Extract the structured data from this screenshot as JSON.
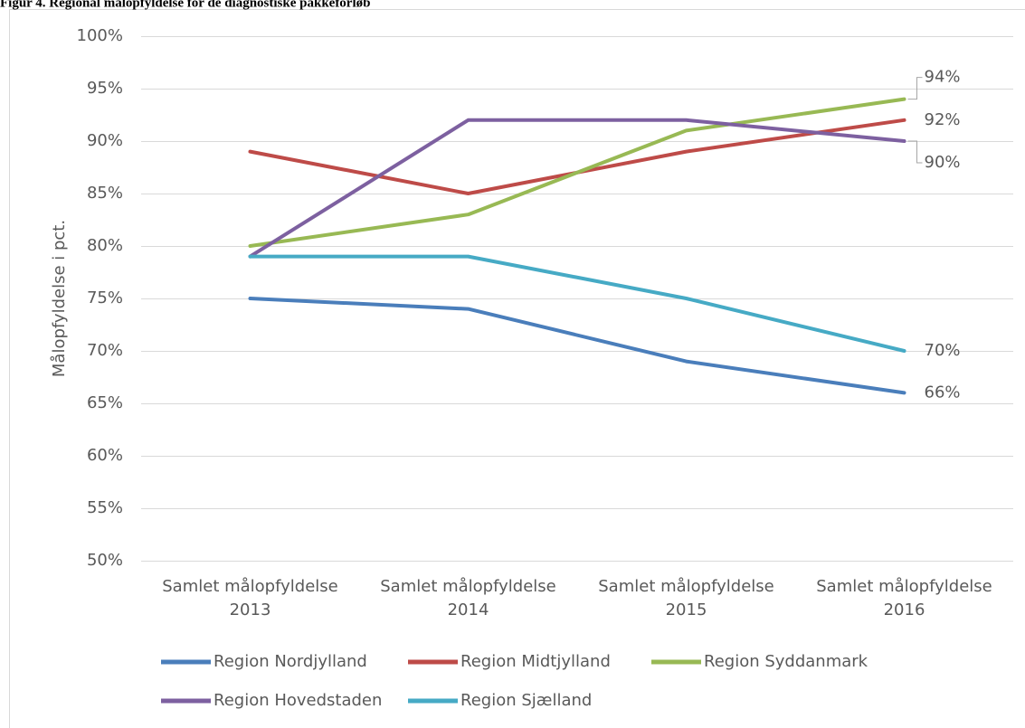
{
  "chart_data": {
    "type": "line",
    "title": "Figur 4. Regional målopfyldelse for de diagnostiske pakkeforløb",
    "y_label": "Målopfyldelse i pct.",
    "categories": [
      "Samlet målopfyldelse 2013",
      "Samlet målopfyldelse 2014",
      "Samlet målopfyldelse 2015",
      "Samlet målopfyldelse 2016"
    ],
    "ylim": [
      50,
      100
    ],
    "yticks": [
      {
        "value": 50,
        "label": "50%"
      },
      {
        "value": 55,
        "label": "55%"
      },
      {
        "value": 60,
        "label": "60%"
      },
      {
        "value": 65,
        "label": "65%"
      },
      {
        "value": 70,
        "label": "70%"
      },
      {
        "value": 75,
        "label": "75%"
      },
      {
        "value": 80,
        "label": "80%"
      },
      {
        "value": 85,
        "label": "85%"
      },
      {
        "value": 90,
        "label": "90%"
      },
      {
        "value": 95,
        "label": "95%"
      },
      {
        "value": 100,
        "label": "100%"
      }
    ],
    "grid": true,
    "legend": "bottom",
    "series": [
      {
        "name": "Region Nordjylland",
        "color": "#4a7ebb",
        "values": [
          75,
          74,
          69,
          66
        ],
        "value_labels": [
          null,
          null,
          null,
          "66%"
        ]
      },
      {
        "name": "Region Midtjylland",
        "color": "#be4b48",
        "values": [
          89,
          85,
          89,
          92
        ],
        "value_labels": [
          null,
          null,
          null,
          "92%"
        ]
      },
      {
        "name": "Region Syddanmark",
        "color": "#98b954",
        "values": [
          80,
          83,
          91,
          94
        ],
        "value_labels": [
          null,
          null,
          null,
          "94%"
        ]
      },
      {
        "name": "Region Hovedstaden",
        "color": "#7d60a0",
        "values": [
          79,
          92,
          92,
          90
        ],
        "value_labels": [
          null,
          null,
          null,
          "90%"
        ]
      },
      {
        "name": "Region Sjælland",
        "color": "#46aac5",
        "values": [
          79,
          79,
          75,
          70
        ],
        "value_labels": [
          null,
          null,
          null,
          "70%"
        ]
      }
    ]
  }
}
